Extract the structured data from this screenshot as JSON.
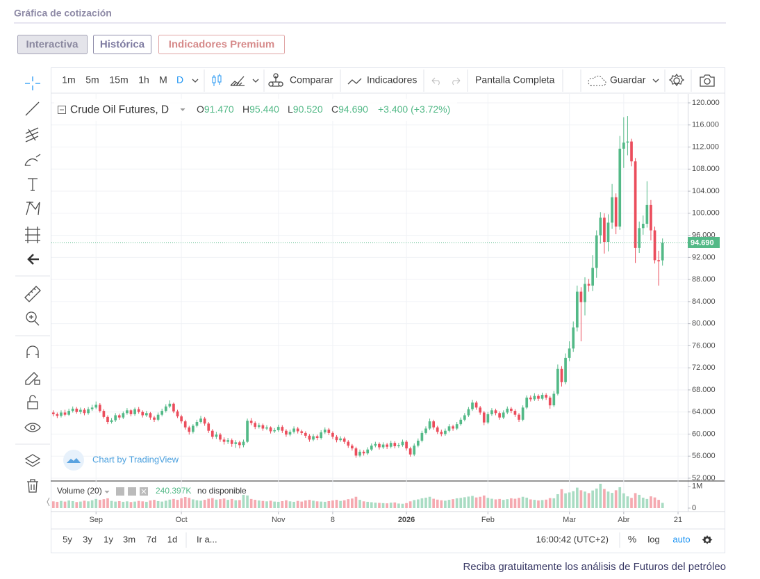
{
  "page_title": "Gráfica de cotización",
  "tabs": [
    "Interactiva",
    "Histórica",
    "Indicadores Premium"
  ],
  "toolbar": {
    "intervals": [
      "1m",
      "5m",
      "15m",
      "1h",
      "M",
      "D"
    ],
    "compare": "Comparar",
    "indicators": "Indicadores",
    "fullscreen": "Pantalla Completa",
    "save": "Guardar"
  },
  "chart_data": {
    "type": "candlestick",
    "symbol": "Crude Oil Futures, D",
    "ohlc_legend": [
      {
        "key": "O",
        "value": "91.470"
      },
      {
        "key": "H",
        "value": "95.440"
      },
      {
        "key": "L",
        "value": "90.520"
      },
      {
        "key": "C",
        "value": "94.690"
      }
    ],
    "change": "+3.400 (+3.72%)",
    "open": [
      63.9,
      63.6,
      63.3,
      63.9,
      63.5,
      64.2,
      64.6,
      64.0,
      64.4,
      63.8,
      64.5,
      64.8,
      65.3,
      64.2,
      63.1,
      62.2,
      62.5,
      63.4,
      63.0,
      63.8,
      64.3,
      63.6,
      64.5,
      64.0,
      63.4,
      63.8,
      63.0,
      62.6,
      63.5,
      64.2,
      65.0,
      65.5,
      64.1,
      63.2,
      62.3,
      61.2,
      60.4,
      61.5,
      62.2,
      62.8,
      61.9,
      60.6,
      59.5,
      59.9,
      59.0,
      58.6,
      58.9,
      58.2,
      58.5,
      58.0,
      58.6,
      62.4,
      62.0,
      61.3,
      61.6,
      61.0,
      61.2,
      60.5,
      60.7,
      61.3,
      60.6,
      59.9,
      60.4,
      61.0,
      60.5,
      60.2,
      59.7,
      59.0,
      59.6,
      59.3,
      60.3,
      60.8,
      60.2,
      59.5,
      58.9,
      59.2,
      58.6,
      57.9,
      57.4,
      56.1,
      56.8,
      56.5,
      57.2,
      57.9,
      58.2,
      57.6,
      58.1,
      57.7,
      58.4,
      57.8,
      58.0,
      58.6,
      57.4,
      56.3,
      57.9,
      58.8,
      60.2,
      61.0,
      62.3,
      61.2,
      60.4,
      60.0,
      60.6,
      61.4,
      61.0,
      61.8,
      62.6,
      63.4,
      64.5,
      65.7,
      64.8,
      63.9,
      62.1,
      63.6,
      64.3,
      63.8,
      63.0,
      63.9,
      64.6,
      64.2,
      63.5,
      62.6,
      64.8,
      66.6,
      66.3,
      66.9,
      66.4,
      67.1,
      66.6,
      65.2,
      67.3,
      71.8,
      69.4,
      73.8,
      75.5,
      79.3,
      85.8,
      83.9,
      87.2,
      86.9,
      90.1,
      96.0,
      99.2,
      94.8,
      98.3,
      102.9,
      97.6,
      111.7,
      112.8,
      113.0,
      109.4,
      93.7,
      97.3,
      98.1,
      101.5,
      96.9,
      91.5,
      91.47
    ],
    "high": [
      64.3,
      63.9,
      64.3,
      64.4,
      64.6,
      65.0,
      64.9,
      64.8,
      64.7,
      64.9,
      65.3,
      65.9,
      65.6,
      64.5,
      63.4,
      62.9,
      63.8,
      63.7,
      64.1,
      64.7,
      64.5,
      64.8,
      64.9,
      64.3,
      64.2,
      64.0,
      63.3,
      63.9,
      64.6,
      65.4,
      66.1,
      65.7,
      64.4,
      63.5,
      62.6,
      61.5,
      61.8,
      62.6,
      63.3,
      63.1,
      62.2,
      60.9,
      60.4,
      60.2,
      59.4,
      59.3,
      59.2,
      58.9,
      58.8,
      59.0,
      62.8,
      62.9,
      62.3,
      62.0,
      61.9,
      61.6,
      61.4,
      61.1,
      61.7,
      61.6,
      60.9,
      60.8,
      61.4,
      61.3,
      60.8,
      60.5,
      60.0,
      60.0,
      59.9,
      60.7,
      61.2,
      61.1,
      60.5,
      59.8,
      59.6,
      59.5,
      58.9,
      58.2,
      57.7,
      57.2,
      57.1,
      57.6,
      58.3,
      58.6,
      58.5,
      58.5,
      58.4,
      58.8,
      58.7,
      58.4,
      59.0,
      58.9,
      57.7,
      58.3,
      59.2,
      60.6,
      61.4,
      62.8,
      62.6,
      61.5,
      60.8,
      61.0,
      61.8,
      61.7,
      62.2,
      63.0,
      63.8,
      64.9,
      66.2,
      66.0,
      65.1,
      64.2,
      64.0,
      64.7,
      64.6,
      64.1,
      64.3,
      65.0,
      64.9,
      64.5,
      63.8,
      65.2,
      67.0,
      67.0,
      67.4,
      67.2,
      67.5,
      67.4,
      66.9,
      67.8,
      72.6,
      72.3,
      74.6,
      76.8,
      80.4,
      86.9,
      86.6,
      88.4,
      88.1,
      92.4,
      96.9,
      100.2,
      100.0,
      99.8,
      105.3,
      103.6,
      114.0,
      117.4,
      117.6,
      113.5,
      110.0,
      98.5,
      99.6,
      105.8,
      102.4,
      97.6,
      93.2,
      95.44
    ],
    "low": [
      63.2,
      62.9,
      63.0,
      63.2,
      63.3,
      63.9,
      63.7,
      63.6,
      63.4,
      63.5,
      64.2,
      64.5,
      63.9,
      62.8,
      61.8,
      61.9,
      62.2,
      62.6,
      62.7,
      63.5,
      63.2,
      63.3,
      63.7,
      63.0,
      63.1,
      62.6,
      62.2,
      62.3,
      63.2,
      63.9,
      64.7,
      63.8,
      62.9,
      61.9,
      60.8,
      59.9,
      60.1,
      61.2,
      61.9,
      61.5,
      60.2,
      59.1,
      59.1,
      58.6,
      58.1,
      58.2,
      57.7,
      57.5,
      57.4,
      57.6,
      58.4,
      61.6,
      60.9,
      61.0,
      60.6,
      60.7,
      60.1,
      60.2,
      60.4,
      60.2,
      59.5,
      59.6,
      60.1,
      60.1,
      59.8,
      59.3,
      58.6,
      58.7,
      58.9,
      59.0,
      60.0,
      59.8,
      59.1,
      58.5,
      58.6,
      58.2,
      57.5,
      57.0,
      55.7,
      55.8,
      56.1,
      56.2,
      56.9,
      57.6,
      57.2,
      57.3,
      57.3,
      57.4,
      57.4,
      57.5,
      57.7,
      57.0,
      55.9,
      56.0,
      57.6,
      58.5,
      59.9,
      60.7,
      60.8,
      60.0,
      59.6,
      59.7,
      60.3,
      60.6,
      60.7,
      61.5,
      62.3,
      63.1,
      64.2,
      64.4,
      63.5,
      61.6,
      61.8,
      63.3,
      63.4,
      62.6,
      62.7,
      63.6,
      63.8,
      63.1,
      62.2,
      62.3,
      64.5,
      65.9,
      66.0,
      66.0,
      66.1,
      66.2,
      64.6,
      64.9,
      67.0,
      68.6,
      69.0,
      73.2,
      74.9,
      78.6,
      76.8,
      81.5,
      85.8,
      85.9,
      88.3,
      94.5,
      92.7,
      93.1,
      97.2,
      96.2,
      97.0,
      108.2,
      110.5,
      108.5,
      91.0,
      92.8,
      96.1,
      97.4,
      95.1,
      90.9,
      86.9,
      90.52
    ],
    "close": [
      63.6,
      63.3,
      63.9,
      63.5,
      64.2,
      64.6,
      64.0,
      64.4,
      63.8,
      64.5,
      64.8,
      65.3,
      64.2,
      63.1,
      62.2,
      62.5,
      63.4,
      63.0,
      63.8,
      64.3,
      63.6,
      64.5,
      64.0,
      63.4,
      63.8,
      63.0,
      62.6,
      63.5,
      64.2,
      65.0,
      65.5,
      64.1,
      63.2,
      62.3,
      61.2,
      60.4,
      61.5,
      62.2,
      62.8,
      61.9,
      60.6,
      59.5,
      59.9,
      59.0,
      58.6,
      58.9,
      58.2,
      58.5,
      58.0,
      58.6,
      62.4,
      62.0,
      61.3,
      61.6,
      61.0,
      61.2,
      60.5,
      60.7,
      61.3,
      60.6,
      59.9,
      60.4,
      61.0,
      60.5,
      60.2,
      59.7,
      59.0,
      59.6,
      59.3,
      60.3,
      60.8,
      60.2,
      59.5,
      58.9,
      59.2,
      58.6,
      57.9,
      57.4,
      56.1,
      56.8,
      56.5,
      57.2,
      57.9,
      58.2,
      57.6,
      58.1,
      57.7,
      58.4,
      57.8,
      58.0,
      58.6,
      57.4,
      56.3,
      57.9,
      58.8,
      60.2,
      61.0,
      62.3,
      61.2,
      60.4,
      60.0,
      60.6,
      61.4,
      61.0,
      61.8,
      62.6,
      63.4,
      64.5,
      65.7,
      64.8,
      63.9,
      62.1,
      63.6,
      64.3,
      63.8,
      63.0,
      63.9,
      64.6,
      64.2,
      63.5,
      62.6,
      64.8,
      66.6,
      66.3,
      66.9,
      66.4,
      67.1,
      66.6,
      65.2,
      67.3,
      71.8,
      69.4,
      73.8,
      75.5,
      79.3,
      85.8,
      83.9,
      87.2,
      86.9,
      90.1,
      96.0,
      99.2,
      94.8,
      98.3,
      102.9,
      97.6,
      111.7,
      112.8,
      113.0,
      109.4,
      93.7,
      97.3,
      98.1,
      101.5,
      96.9,
      91.5,
      91.29,
      94.69
    ],
    "volume": [
      310000,
      290000,
      330000,
      300000,
      350000,
      320000,
      280000,
      300000,
      340000,
      310000,
      360000,
      420000,
      380000,
      410000,
      450000,
      330000,
      300000,
      320000,
      290000,
      310000,
      280000,
      300000,
      330000,
      310000,
      290000,
      350000,
      380000,
      320000,
      300000,
      340000,
      390000,
      420000,
      380000,
      450000,
      510000,
      470000,
      400000,
      360000,
      340000,
      380000,
      430000,
      460000,
      390000,
      410000,
      440000,
      380000,
      420000,
      360000,
      370000,
      610000,
      580000,
      420000,
      380000,
      350000,
      330000,
      310000,
      340000,
      300000,
      290000,
      320000,
      360000,
      310000,
      290000,
      330000,
      300000,
      350000,
      380000,
      340000,
      310000,
      300000,
      290000,
      320000,
      350000,
      380000,
      330000,
      360000,
      410000,
      440000,
      520000,
      380000,
      310000,
      290000,
      270000,
      250000,
      240000,
      230000,
      220000,
      250000,
      260000,
      210000,
      200000,
      230000,
      310000,
      370000,
      400000,
      450000,
      480000,
      520000,
      430000,
      390000,
      360000,
      340000,
      380000,
      410000,
      450000,
      470000,
      500000,
      530000,
      560000,
      490000,
      520000,
      580000,
      470000,
      430000,
      400000,
      420000,
      380000,
      410000,
      450000,
      430000,
      470000,
      520000,
      480000,
      400000,
      380000,
      350000,
      370000,
      390000,
      460000,
      450000,
      640000,
      870000,
      680000,
      720000,
      780000,
      940000,
      820000,
      760000,
      690000,
      810000,
      900000,
      1120000,
      880000,
      760000,
      700000,
      820000,
      960000,
      680000,
      540000,
      470000,
      690000,
      610000,
      480000,
      420000,
      540000,
      490000,
      380000,
      240397
    ],
    "price_label": "94.690",
    "xlim": [
      -0.5,
      163.5
    ],
    "xticks": [
      {
        "value": 11,
        "label": "Sep"
      },
      {
        "value": 33,
        "label": "Oct"
      },
      {
        "value": 58,
        "label": "Nov"
      },
      {
        "value": 72,
        "label": "8"
      },
      {
        "value": 91,
        "label": "2026"
      },
      {
        "value": 112,
        "label": "Feb"
      },
      {
        "value": 133,
        "label": "Mar"
      },
      {
        "value": 147,
        "label": "Abr"
      },
      {
        "value": 161,
        "label": "21"
      }
    ],
    "ylim": [
      52,
      120
    ],
    "yticks": [
      {
        "value": 52,
        "label": "52.000"
      },
      {
        "value": 56,
        "label": "56.000"
      },
      {
        "value": 60,
        "label": "60.000"
      },
      {
        "value": 64,
        "label": "64.000"
      },
      {
        "value": 68,
        "label": "68.000"
      },
      {
        "value": 72,
        "label": "72.000"
      },
      {
        "value": 76,
        "label": "76.000"
      },
      {
        "value": 80,
        "label": "80.000"
      },
      {
        "value": 84,
        "label": "84.000"
      },
      {
        "value": 88,
        "label": "88.000"
      },
      {
        "value": 92,
        "label": "92.000"
      },
      {
        "value": 96,
        "label": "96.000"
      },
      {
        "value": 100,
        "label": "100.000"
      },
      {
        "value": 104,
        "label": "104.000"
      },
      {
        "value": 108,
        "label": "108.000"
      },
      {
        "value": 112,
        "label": "112.000"
      },
      {
        "value": 116,
        "label": "116.000"
      },
      {
        "value": 120,
        "label": "120.000"
      }
    ],
    "grid": true,
    "up_color": "#53b987",
    "down_color": "#eb4d5c",
    "volume_up_color": "#a9dcc3",
    "volume_down_color": "#f5a9b0",
    "volume_legend": {
      "title": "Volume (20)",
      "value": "240.397K",
      "status": "no disponible"
    },
    "volume_ylim": [
      0,
      1150000
    ],
    "volume_yticks": [
      0,
      {
        "value": 1000000,
        "label": "1M"
      }
    ],
    "watermark": "Chart by TradingView"
  },
  "bottom_bar": {
    "ranges": [
      "5y",
      "3y",
      "1y",
      "3m",
      "7d",
      "1d"
    ],
    "goto": "Ir a...",
    "time": "16:00:42 (UTC+2)",
    "percent": "%",
    "log": "log",
    "auto": "auto"
  },
  "footer": "Reciba gratuitamente los análisis de Futuros del petróleo"
}
